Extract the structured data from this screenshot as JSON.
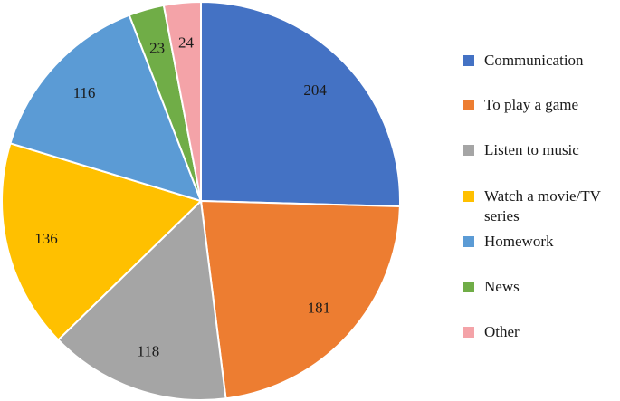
{
  "chart_data": {
    "type": "pie",
    "categories": [
      "Communication",
      "To play a game",
      "Listen to music",
      "Watch a movie/TV series",
      "Homework",
      "News",
      "Other"
    ],
    "values": [
      204,
      181,
      118,
      136,
      116,
      23,
      24
    ],
    "colors": [
      "#4472C4",
      "#ED7D31",
      "#A5A5A5",
      "#FFC000",
      "#5B9BD5",
      "#70AD47",
      "#F4A3A8"
    ],
    "label_colors": [
      "#ffffff",
      "#1a1a1a",
      "#1a1a1a",
      "#1a1a1a",
      "#ffffff",
      "#1a1a1a",
      "#1a1a1a"
    ],
    "start_angle_deg": 0,
    "direction": "clockwise",
    "legend": {
      "position": "right",
      "items": [
        {
          "label": "Communication",
          "color": "#4472C4"
        },
        {
          "label": "To play a game",
          "color": "#ED7D31"
        },
        {
          "label": "Listen to music",
          "color": "#A5A5A5"
        },
        {
          "label": "Watch a movie/TV series",
          "color": "#FFC000"
        },
        {
          "label": "Homework",
          "color": "#5B9BD5"
        },
        {
          "label": "News",
          "color": "#70AD47"
        },
        {
          "label": "Other",
          "color": "#F4A3A8"
        }
      ]
    }
  }
}
